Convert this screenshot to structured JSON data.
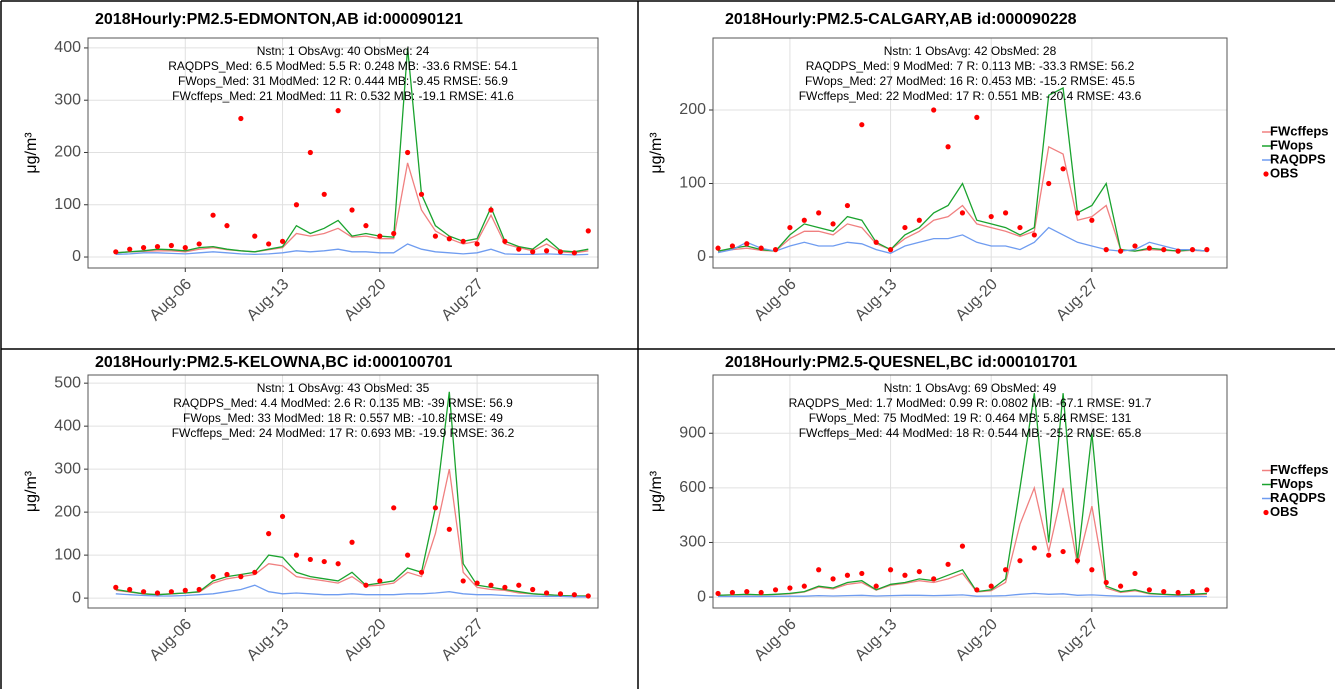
{
  "chart_data": [
    {
      "type": "line",
      "title": "2018Hourly:PM2.5-EDMONTON,AB id:000090121",
      "ylabel": "μg/m³",
      "annotations": [
        "Nstn: 1 ObsAvg: 40  ObsMed: 24",
        "RAQDPS_Med: 6.5  ModMed: 5.5  R: 0.248  MB: -33.6 RMSE: 54.1",
        "FWops_Med: 31  ModMed: 12  R: 0.444  MB: -9.45  RMSE: 56.9",
        "FWcffeps_Med: 21  ModMed: 11  R: 0.532  MB: -19.1  RMSE: 41.6"
      ],
      "x": [
        1,
        2,
        3,
        4,
        5,
        6,
        7,
        8,
        9,
        10,
        11,
        12,
        13,
        14,
        15,
        16,
        17,
        18,
        19,
        20,
        21,
        22,
        23,
        24,
        25,
        26,
        27,
        28,
        29,
        30,
        31,
        32,
        33,
        34,
        35
      ],
      "xlim": [
        -1.0,
        35.7
      ],
      "xticks": [
        {
          "value": 6,
          "label": "Aug-06"
        },
        {
          "value": 13,
          "label": "Aug-13"
        },
        {
          "value": 20,
          "label": "Aug-20"
        },
        {
          "value": 27,
          "label": "Aug-27"
        }
      ],
      "ylim": [
        -21,
        419
      ],
      "yticks": [
        0,
        100,
        200,
        300,
        400
      ],
      "grid": true,
      "legend": false,
      "series": [
        {
          "name": "FWcffeps",
          "color": "#f08080",
          "type": "line",
          "values": [
            8,
            10,
            11,
            12,
            12,
            10,
            15,
            18,
            14,
            12,
            10,
            14,
            18,
            45,
            40,
            45,
            55,
            38,
            40,
            35,
            35,
            180,
            90,
            50,
            35,
            25,
            30,
            80,
            25,
            18,
            12,
            25,
            10,
            8,
            12
          ]
        },
        {
          "name": "FWops",
          "color": "#1aa32e",
          "type": "line",
          "values": [
            8,
            10,
            12,
            15,
            14,
            12,
            18,
            20,
            15,
            12,
            10,
            15,
            20,
            60,
            45,
            55,
            70,
            40,
            45,
            40,
            38,
            400,
            120,
            60,
            40,
            30,
            35,
            95,
            30,
            20,
            15,
            35,
            12,
            10,
            15
          ]
        },
        {
          "name": "RAQDPS",
          "color": "#6f9cf0",
          "type": "line",
          "values": [
            5,
            6,
            8,
            8,
            7,
            6,
            8,
            10,
            8,
            6,
            5,
            6,
            8,
            12,
            10,
            12,
            15,
            10,
            10,
            8,
            8,
            25,
            15,
            10,
            8,
            6,
            8,
            15,
            6,
            5,
            5,
            6,
            5,
            4,
            5
          ]
        },
        {
          "name": "OBS",
          "color": "#ff0000",
          "type": "scatter",
          "values": [
            10,
            15,
            18,
            20,
            22,
            18,
            25,
            80,
            60,
            265,
            40,
            25,
            30,
            100,
            200,
            120,
            280,
            90,
            60,
            40,
            45,
            200,
            120,
            40,
            35,
            30,
            25,
            90,
            30,
            15,
            10,
            12,
            10,
            8,
            50
          ]
        }
      ]
    },
    {
      "type": "line",
      "title": "2018Hourly:PM2.5-CALGARY,AB id:000090228",
      "ylabel": "μg/m³",
      "annotations": [
        "Nstn: 1 ObsAvg: 42  ObsMed: 28",
        "RAQDPS_Med: 9  ModMed: 7  R: 0.113  MB: -33.3  RMSE: 56.2",
        "FWops_Med: 27  ModMed: 16  R: 0.453  MB: -15.2  RMSE: 45.5",
        "FWcffeps_Med: 22  ModMed: 17  R: 0.551  MB: -20.4  RMSE: 43.6"
      ],
      "x": [
        1,
        2,
        3,
        4,
        5,
        6,
        7,
        8,
        9,
        10,
        11,
        12,
        13,
        14,
        15,
        16,
        17,
        18,
        19,
        20,
        21,
        22,
        23,
        24,
        25,
        26,
        27,
        28,
        29,
        30,
        31,
        32,
        33,
        34,
        35
      ],
      "xlim": [
        0.65,
        36.4
      ],
      "xticks": [
        {
          "value": 6,
          "label": "Aug-06"
        },
        {
          "value": 13,
          "label": "Aug-13"
        },
        {
          "value": 20,
          "label": "Aug-20"
        },
        {
          "value": 27,
          "label": "Aug-27"
        }
      ],
      "ylim": [
        -15,
        298
      ],
      "yticks": [
        0,
        100,
        200
      ],
      "grid": true,
      "legend": true,
      "series": [
        {
          "name": "FWcffeps",
          "color": "#f08080",
          "type": "line",
          "values": [
            8,
            10,
            12,
            9,
            8,
            25,
            35,
            35,
            30,
            45,
            40,
            18,
            10,
            25,
            35,
            50,
            55,
            70,
            45,
            40,
            35,
            28,
            35,
            150,
            140,
            50,
            55,
            70,
            10,
            8,
            10,
            9,
            8,
            9,
            8
          ]
        },
        {
          "name": "FWops",
          "color": "#1aa32e",
          "type": "line",
          "values": [
            8,
            12,
            15,
            10,
            8,
            30,
            45,
            40,
            35,
            55,
            50,
            20,
            10,
            30,
            40,
            60,
            70,
            100,
            50,
            45,
            40,
            30,
            40,
            220,
            230,
            60,
            70,
            100,
            10,
            8,
            12,
            10,
            8,
            10,
            8
          ]
        },
        {
          "name": "RAQDPS",
          "color": "#6f9cf0",
          "type": "line",
          "values": [
            6,
            10,
            20,
            12,
            8,
            15,
            20,
            15,
            15,
            20,
            18,
            10,
            5,
            15,
            20,
            25,
            25,
            30,
            20,
            15,
            15,
            10,
            20,
            40,
            30,
            20,
            15,
            10,
            8,
            10,
            20,
            15,
            10,
            10,
            8
          ]
        },
        {
          "name": "OBS",
          "color": "#ff0000",
          "type": "scatter",
          "values": [
            12,
            15,
            18,
            12,
            10,
            40,
            50,
            60,
            45,
            70,
            180,
            20,
            10,
            40,
            50,
            200,
            150,
            60,
            190,
            55,
            60,
            40,
            30,
            100,
            120,
            60,
            50,
            10,
            8,
            15,
            12,
            10,
            8,
            10,
            10
          ]
        }
      ]
    },
    {
      "type": "line",
      "title": "2018Hourly:PM2.5-KELOWNA,BC id:000100701",
      "ylabel": "μg/m³",
      "annotations": [
        "Nstn: 1 ObsAvg: 43  ObsMed: 35",
        "RAQDPS_Med: 4.4  ModMed: 2.6  R: 0.135  MB: -39  RMSE: 56.9",
        "FWops_Med: 33  ModMed: 18  R: 0.557  MB: -10.8  RMSE: 49",
        "FWcffeps_Med: 24  ModMed: 17  R: 0.693  MB: -19.9  RMSE: 36.2"
      ],
      "x": [
        1,
        2,
        3,
        4,
        5,
        6,
        7,
        8,
        9,
        10,
        11,
        12,
        13,
        14,
        15,
        16,
        17,
        18,
        19,
        20,
        21,
        22,
        23,
        24,
        25,
        26,
        27,
        28,
        29,
        30,
        31,
        32,
        33,
        34,
        35
      ],
      "xlim": [
        -1.0,
        35.7
      ],
      "xticks": [
        {
          "value": 6,
          "label": "Aug-06"
        },
        {
          "value": 13,
          "label": "Aug-13"
        },
        {
          "value": 20,
          "label": "Aug-20"
        },
        {
          "value": 27,
          "label": "Aug-27"
        }
      ],
      "ylim": [
        -23,
        519
      ],
      "yticks": [
        0,
        100,
        200,
        300,
        400,
        500
      ],
      "grid": true,
      "legend": false,
      "series": [
        {
          "name": "FWcffeps",
          "color": "#f08080",
          "type": "line",
          "values": [
            18,
            14,
            10,
            8,
            10,
            12,
            14,
            35,
            45,
            50,
            55,
            80,
            75,
            50,
            45,
            40,
            35,
            50,
            28,
            30,
            35,
            60,
            50,
            150,
            300,
            60,
            25,
            20,
            18,
            12,
            10,
            8,
            6,
            5,
            5
          ]
        },
        {
          "name": "FWops",
          "color": "#1aa32e",
          "type": "line",
          "values": [
            20,
            15,
            10,
            8,
            10,
            12,
            15,
            40,
            50,
            55,
            60,
            100,
            95,
            60,
            50,
            45,
            40,
            60,
            30,
            35,
            40,
            70,
            60,
            210,
            480,
            80,
            30,
            25,
            20,
            15,
            10,
            8,
            6,
            5,
            5
          ]
        },
        {
          "name": "RAQDPS",
          "color": "#6f9cf0",
          "type": "line",
          "values": [
            10,
            8,
            6,
            5,
            5,
            6,
            8,
            10,
            15,
            20,
            30,
            15,
            10,
            12,
            10,
            8,
            8,
            10,
            8,
            8,
            8,
            10,
            10,
            12,
            15,
            10,
            8,
            8,
            6,
            5,
            5,
            4,
            4,
            3,
            3
          ]
        },
        {
          "name": "OBS",
          "color": "#ff0000",
          "type": "scatter",
          "values": [
            25,
            20,
            15,
            12,
            15,
            18,
            20,
            50,
            55,
            50,
            60,
            150,
            190,
            100,
            90,
            85,
            80,
            130,
            30,
            40,
            210,
            100,
            60,
            210,
            160,
            40,
            35,
            30,
            25,
            30,
            20,
            12,
            10,
            8,
            5
          ]
        }
      ]
    },
    {
      "type": "line",
      "title": "2018Hourly:PM2.5-QUESNEL,BC id:000101701",
      "ylabel": "μg/m³",
      "annotations": [
        "Nstn: 1 ObsAvg: 69  ObsMed: 49",
        "RAQDPS_Med: 1.7  ModMed: 0.99  R: 0.0802  MB: -67.1  RMSE: 91.7",
        "FWops_Med: 75  ModMed: 19  R: 0.464  MB: 5.84  RMSE: 131",
        "FWcffeps_Med: 44  ModMed: 18  R: 0.544  MB: -25.2  RMSE: 65.8"
      ],
      "x": [
        1,
        2,
        3,
        4,
        5,
        6,
        7,
        8,
        9,
        10,
        11,
        12,
        13,
        14,
        15,
        16,
        17,
        18,
        19,
        20,
        21,
        22,
        23,
        24,
        25,
        26,
        27,
        28,
        29,
        30,
        31,
        32,
        33,
        34,
        35
      ],
      "xlim": [
        0.65,
        36.4
      ],
      "xticks": [
        {
          "value": 6,
          "label": "Aug-06"
        },
        {
          "value": 13,
          "label": "Aug-13"
        },
        {
          "value": 20,
          "label": "Aug-20"
        },
        {
          "value": 27,
          "label": "Aug-27"
        }
      ],
      "ylim": [
        -60,
        1220
      ],
      "yticks": [
        0,
        300,
        600,
        900
      ],
      "grid": true,
      "legend": true,
      "series": [
        {
          "name": "FWcffeps",
          "color": "#f08080",
          "type": "line",
          "values": [
            10,
            12,
            14,
            12,
            14,
            18,
            28,
            55,
            45,
            70,
            80,
            38,
            65,
            75,
            90,
            80,
            100,
            130,
            28,
            35,
            80,
            400,
            600,
            250,
            600,
            180,
            500,
            50,
            25,
            35,
            18,
            14,
            10,
            12,
            15
          ]
        },
        {
          "name": "FWops",
          "color": "#1aa32e",
          "type": "line",
          "values": [
            10,
            12,
            15,
            12,
            15,
            20,
            30,
            60,
            50,
            80,
            90,
            40,
            70,
            80,
            100,
            90,
            120,
            150,
            30,
            40,
            100,
            600,
            1120,
            300,
            1120,
            200,
            900,
            60,
            30,
            40,
            20,
            15,
            12,
            15,
            20
          ]
        },
        {
          "name": "RAQDPS",
          "color": "#6f9cf0",
          "type": "line",
          "values": [
            3,
            3,
            4,
            3,
            4,
            5,
            5,
            8,
            6,
            8,
            10,
            6,
            8,
            10,
            10,
            8,
            10,
            12,
            5,
            6,
            8,
            15,
            20,
            15,
            18,
            10,
            12,
            8,
            5,
            5,
            4,
            3,
            3,
            3,
            3
          ]
        },
        {
          "name": "OBS",
          "color": "#ff0000",
          "type": "scatter",
          "values": [
            20,
            25,
            30,
            25,
            40,
            50,
            60,
            150,
            100,
            120,
            130,
            60,
            150,
            120,
            140,
            100,
            180,
            280,
            40,
            60,
            150,
            200,
            270,
            230,
            250,
            200,
            150,
            80,
            60,
            130,
            40,
            30,
            25,
            30,
            40
          ]
        }
      ]
    }
  ]
}
